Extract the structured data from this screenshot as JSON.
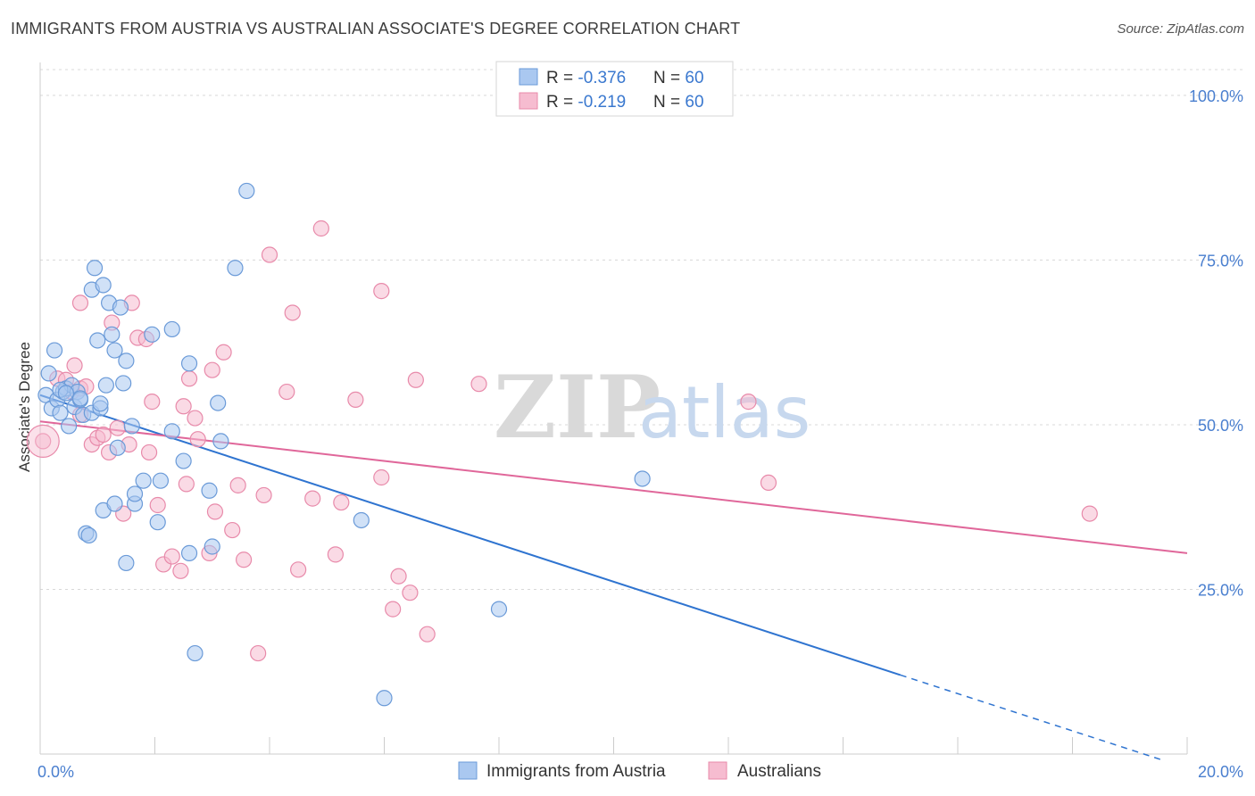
{
  "title": "IMMIGRANTS FROM AUSTRIA VS AUSTRALIAN ASSOCIATE'S DEGREE CORRELATION CHART",
  "source": "Source: ZipAtlas.com",
  "watermark": {
    "zip": "ZIP",
    "atlas": "atlas"
  },
  "colors": {
    "blue_fill": "#aac8f0",
    "blue_stroke": "#6a9ad8",
    "blue_line": "#2f74d0",
    "pink_fill": "#f6bcd0",
    "pink_stroke": "#e88aaa",
    "pink_line": "#e0679a",
    "grid": "#d8d8d8",
    "tick_text": "#4a7fcf"
  },
  "legend": {
    "rows": [
      {
        "r_label": "R = ",
        "r_value": "-0.376",
        "n_label": "N = ",
        "n_value": "60"
      },
      {
        "r_label": "R = ",
        "r_value": "-0.219",
        "n_label": "N = ",
        "n_value": "60"
      }
    ]
  },
  "chart_data": {
    "type": "scatter",
    "title": "IMMIGRANTS FROM AUSTRIA VS AUSTRALIAN ASSOCIATE'S DEGREE CORRELATION CHART",
    "xlabel": "",
    "ylabel": "Associate's Degree",
    "xlim": [
      0,
      20
    ],
    "ylim": [
      0,
      105
    ],
    "x_tick_labels": [
      "0.0%",
      "20.0%"
    ],
    "y_ticks": [
      25,
      50,
      75,
      100
    ],
    "y_tick_labels": [
      "25.0%",
      "50.0%",
      "75.0%",
      "100.0%"
    ],
    "grid": true,
    "legend_position": "top-center",
    "series": [
      {
        "name": "Immigrants from Austria",
        "color": "blue",
        "trend": {
          "x0": 0,
          "y0": 54.5,
          "x1": 15.0,
          "y1": 12.0,
          "dash_to_x": 19.6,
          "dash_to_y": -1.0
        },
        "points": [
          [
            0.1,
            54.5
          ],
          [
            0.15,
            57.8
          ],
          [
            0.2,
            52.5
          ],
          [
            0.25,
            61.3
          ],
          [
            0.3,
            53.8
          ],
          [
            0.35,
            51.8
          ],
          [
            0.4,
            55.0
          ],
          [
            0.45,
            55.5
          ],
          [
            0.5,
            49.8
          ],
          [
            0.55,
            56.0
          ],
          [
            0.6,
            52.7
          ],
          [
            0.65,
            55.0
          ],
          [
            0.7,
            53.8
          ],
          [
            0.75,
            51.5
          ],
          [
            0.8,
            33.5
          ],
          [
            0.85,
            33.2
          ],
          [
            0.9,
            51.8
          ],
          [
            0.9,
            70.5
          ],
          [
            0.95,
            73.8
          ],
          [
            1.0,
            62.8
          ],
          [
            1.05,
            52.5
          ],
          [
            1.1,
            71.2
          ],
          [
            1.1,
            37.0
          ],
          [
            1.15,
            56.0
          ],
          [
            1.2,
            68.5
          ],
          [
            1.25,
            63.7
          ],
          [
            1.3,
            38.0
          ],
          [
            1.3,
            61.3
          ],
          [
            1.35,
            46.5
          ],
          [
            1.4,
            67.8
          ],
          [
            1.45,
            56.3
          ],
          [
            1.5,
            29.0
          ],
          [
            1.5,
            59.7
          ],
          [
            1.6,
            49.8
          ],
          [
            1.65,
            38.0
          ],
          [
            1.65,
            39.5
          ],
          [
            1.8,
            41.5
          ],
          [
            1.95,
            63.7
          ],
          [
            2.05,
            35.2
          ],
          [
            2.1,
            41.5
          ],
          [
            2.3,
            64.5
          ],
          [
            2.3,
            49.0
          ],
          [
            2.5,
            44.5
          ],
          [
            2.6,
            59.3
          ],
          [
            2.6,
            30.5
          ],
          [
            2.7,
            15.3
          ],
          [
            2.95,
            40.0
          ],
          [
            3.0,
            31.5
          ],
          [
            3.1,
            53.3
          ],
          [
            3.15,
            47.5
          ],
          [
            3.4,
            73.8
          ],
          [
            3.6,
            85.5
          ],
          [
            5.6,
            35.5
          ],
          [
            6.0,
            8.5
          ],
          [
            8.0,
            22.0
          ],
          [
            10.5,
            41.8
          ],
          [
            0.35,
            55.3
          ],
          [
            0.7,
            54.0
          ],
          [
            0.45,
            54.8
          ],
          [
            1.05,
            53.2
          ]
        ]
      },
      {
        "name": "Australians",
        "color": "pink",
        "trend": {
          "x0": 0,
          "y0": 50.5,
          "x1": 20,
          "y1": 30.5
        },
        "points": [
          [
            0.05,
            47.5
          ],
          [
            0.3,
            57.0
          ],
          [
            0.45,
            56.8
          ],
          [
            0.55,
            55.0
          ],
          [
            0.6,
            59.0
          ],
          [
            0.7,
            51.5
          ],
          [
            0.7,
            55.5
          ],
          [
            0.7,
            68.5
          ],
          [
            0.8,
            55.8
          ],
          [
            0.9,
            47.0
          ],
          [
            1.0,
            48.0
          ],
          [
            1.1,
            48.5
          ],
          [
            1.2,
            45.8
          ],
          [
            1.25,
            65.5
          ],
          [
            1.35,
            49.5
          ],
          [
            1.45,
            36.5
          ],
          [
            1.55,
            47.0
          ],
          [
            1.6,
            68.5
          ],
          [
            1.7,
            63.2
          ],
          [
            1.85,
            63.0
          ],
          [
            1.9,
            45.8
          ],
          [
            1.95,
            53.5
          ],
          [
            2.05,
            37.8
          ],
          [
            2.15,
            28.8
          ],
          [
            2.3,
            30.0
          ],
          [
            2.45,
            27.8
          ],
          [
            2.5,
            52.8
          ],
          [
            2.55,
            41.0
          ],
          [
            2.6,
            57.0
          ],
          [
            2.7,
            51.0
          ],
          [
            2.75,
            47.8
          ],
          [
            2.95,
            30.5
          ],
          [
            3.0,
            58.3
          ],
          [
            3.05,
            36.8
          ],
          [
            3.2,
            61.0
          ],
          [
            3.35,
            34.0
          ],
          [
            3.45,
            40.8
          ],
          [
            3.55,
            29.5
          ],
          [
            3.8,
            15.3
          ],
          [
            3.9,
            39.3
          ],
          [
            4.0,
            75.8
          ],
          [
            4.3,
            55.0
          ],
          [
            4.4,
            67.0
          ],
          [
            4.5,
            28.0
          ],
          [
            4.75,
            38.8
          ],
          [
            4.9,
            79.8
          ],
          [
            5.15,
            30.3
          ],
          [
            5.25,
            38.2
          ],
          [
            5.5,
            53.8
          ],
          [
            5.95,
            42.0
          ],
          [
            5.95,
            70.3
          ],
          [
            6.15,
            22.0
          ],
          [
            6.25,
            27.0
          ],
          [
            6.45,
            24.5
          ],
          [
            6.55,
            56.8
          ],
          [
            6.75,
            18.2
          ],
          [
            7.65,
            56.2
          ],
          [
            12.35,
            53.5
          ],
          [
            12.7,
            41.2
          ],
          [
            18.3,
            36.5
          ]
        ]
      }
    ]
  },
  "bottom_legend": [
    "Immigrants from Austria",
    "Australians"
  ]
}
